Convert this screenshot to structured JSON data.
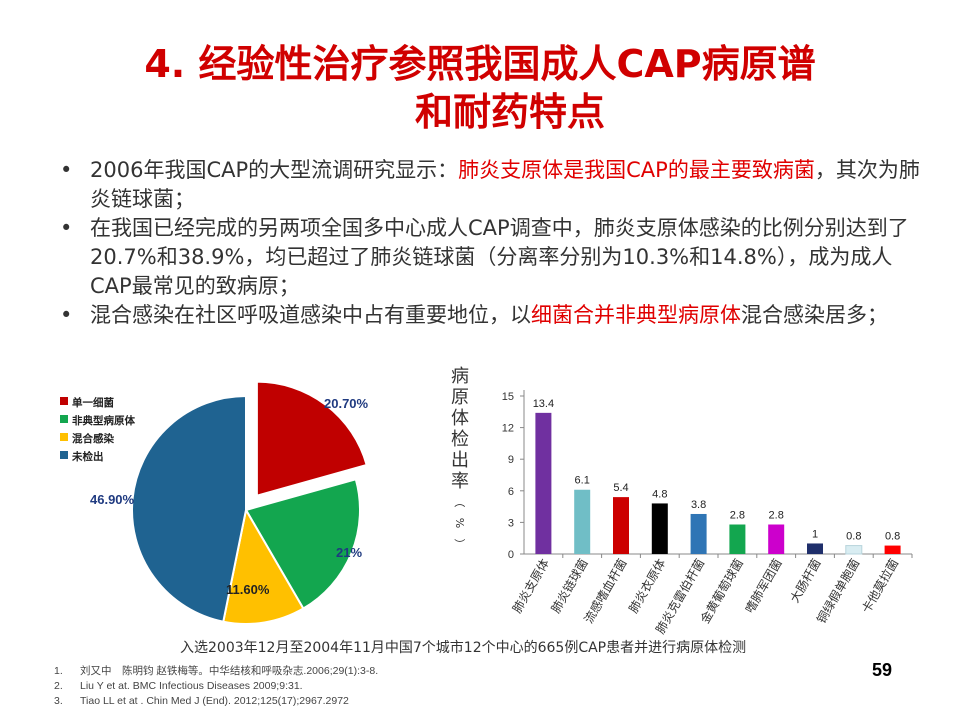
{
  "slide": {
    "title_line1": "4. 经验性治疗参照我国成人CAP病原谱",
    "title_line2": "和耐药特点",
    "page_number": "59",
    "caption": "入选2003年12月至2004年11月中国7个城市12个中心的665例CAP患者并进行病原体检测"
  },
  "bullets": [
    {
      "segments": [
        {
          "text": "2006年我国CAP的大型流调研究显示：",
          "highlight": false
        },
        {
          "text": "肺炎支原体是我国CAP的最主要致病菌",
          "highlight": true
        },
        {
          "text": "，其次为肺炎链球菌；",
          "highlight": false
        }
      ]
    },
    {
      "segments": [
        {
          "text": "在我国已经完成的另两项全国多中心成人CAP调查中，肺炎支原体感染的比例分别达到了20.7%和38.9%，均已超过了肺炎链球菌（分离率分别为10.3%和14.8%），成为成人CAP最常见的致病原；",
          "highlight": false
        }
      ]
    },
    {
      "segments": [
        {
          "text": "混合感染在社区呼吸道感染中占有重要地位，以",
          "highlight": false
        },
        {
          "text": "细菌合并非典型病原体",
          "highlight": true
        },
        {
          "text": "混合感染居多；",
          "highlight": false
        }
      ]
    }
  ],
  "references": [
    {
      "num": "1.",
      "text": "刘又中　陈明钧  赵铁梅等。中华结核和呼吸杂志.2006;29(1):3-8."
    },
    {
      "num": "2.",
      "text": "Liu Y et at. BMC Infectious  Diseases  2009;9:31."
    },
    {
      "num": "3.",
      "text": "Tiao LL et  at . Chin Med J (End). 2012;125(17);2967.2972"
    }
  ],
  "colors": {
    "title": "#d00000",
    "highlight": "#e00000",
    "pie_bacteria": "#c00000",
    "pie_atypical": "#13a64f",
    "pie_mixed": "#ffc000",
    "pie_undetected": "#1f6391"
  },
  "chart_data": [
    {
      "type": "pie",
      "legend_position": "top-left",
      "slices": [
        {
          "name": "单一细菌",
          "value": 20.7,
          "label": "20.70%",
          "color": "#c00000",
          "exploded": true
        },
        {
          "name": "非典型病原体",
          "value": 21.0,
          "label": "21%",
          "color": "#13a64f",
          "exploded": false
        },
        {
          "name": "混合感染",
          "value": 11.6,
          "label": "11.60%",
          "color": "#ffc000",
          "exploded": false
        },
        {
          "name": "未检出",
          "value": 46.9,
          "label": "46.90%",
          "color": "#1f6391",
          "exploded": false
        }
      ]
    },
    {
      "type": "bar",
      "ylabel": "病原体检出率（%）",
      "ylim": [
        0,
        15
      ],
      "yticks": [
        0,
        3,
        6,
        9,
        12,
        15
      ],
      "grid": false,
      "categories": [
        "肺炎支原体",
        "肺炎链球菌",
        "流感嗜血杆菌",
        "肺炎衣原体",
        "肺炎克雷伯杆菌",
        "金黄葡萄球菌",
        "嗜肺军团菌",
        "大肠杆菌",
        "铜绿假单胞菌",
        "卡他莫拉菌"
      ],
      "values": [
        13.4,
        6.1,
        5.4,
        4.8,
        3.8,
        2.8,
        2.8,
        1,
        0.8,
        0.8
      ],
      "value_labels": [
        "13.4",
        "6.1",
        "5.4",
        "4.8",
        "3.8",
        "2.8",
        "2.8",
        "1",
        "0.8",
        "0.8"
      ],
      "colors": [
        "#7030a0",
        "#70bec6",
        "#cc0000",
        "#000000",
        "#2f75b5",
        "#13a64f",
        "#cc00cc",
        "#1f2f6b",
        "#d9edf2",
        "#ff0000"
      ]
    }
  ]
}
